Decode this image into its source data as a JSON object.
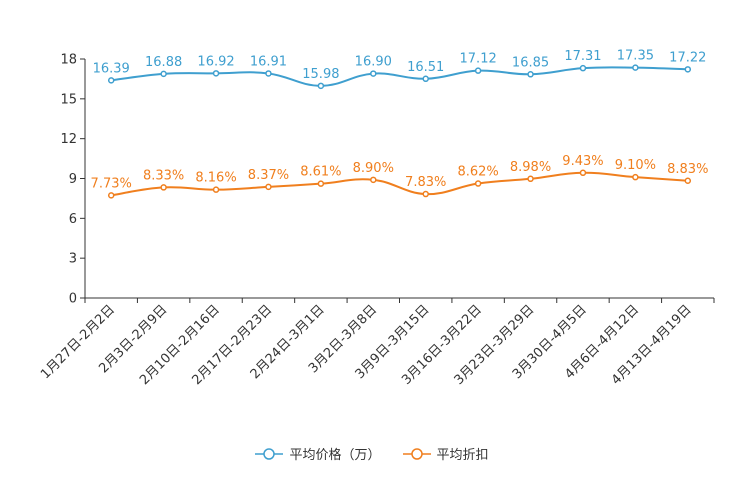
{
  "chart_data": {
    "type": "line",
    "categories": [
      "1月27日-2月2日",
      "2月3日-2月9日",
      "2月10日-2月16日",
      "2月17日-2月23日",
      "2月24日-3月1日",
      "3月2日-3月8日",
      "3月9日-3月15日",
      "3月16日-3月22日",
      "3月23日-3月29日",
      "3月30日-4月5日",
      "4月6日-4月12日",
      "4月13日-4月19日"
    ],
    "ylim": [
      0,
      18
    ],
    "yticks": [
      "0",
      "3",
      "6",
      "9",
      "12",
      "15",
      "18"
    ],
    "series": [
      {
        "name": "平均价格（万）",
        "color": "#3f9fcf",
        "values": [
          16.39,
          16.88,
          16.92,
          16.91,
          15.98,
          16.9,
          16.51,
          17.12,
          16.85,
          17.31,
          17.35,
          17.22
        ],
        "labels": [
          "16.39",
          "16.88",
          "16.92",
          "16.91",
          "15.98",
          "16.90",
          "16.51",
          "17.12",
          "16.85",
          "17.31",
          "17.35",
          "17.22"
        ]
      },
      {
        "name": "平均折扣",
        "color": "#f07f1e",
        "values": [
          7.73,
          8.33,
          8.16,
          8.37,
          8.61,
          8.9,
          7.83,
          8.62,
          8.98,
          9.43,
          9.1,
          8.83
        ],
        "labels": [
          "7.73%",
          "8.33%",
          "8.16%",
          "8.37%",
          "8.61%",
          "8.90%",
          "7.83%",
          "8.62%",
          "8.98%",
          "9.43%",
          "9.10%",
          "8.83%"
        ]
      }
    ],
    "legend_position": "bottom"
  }
}
